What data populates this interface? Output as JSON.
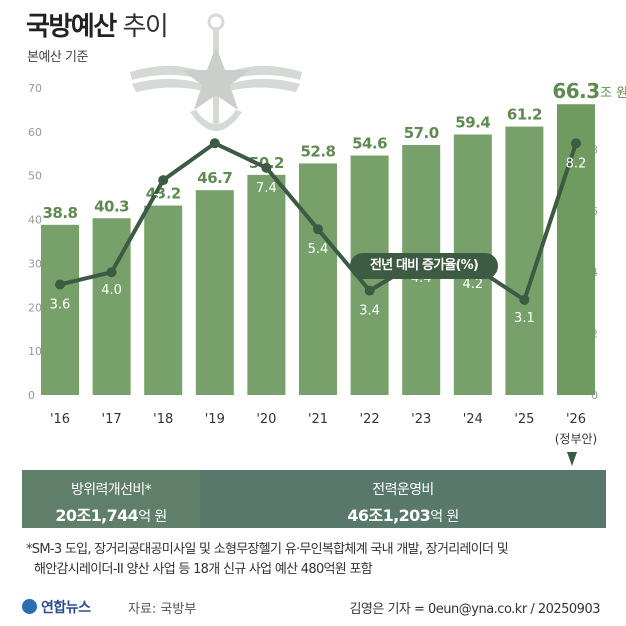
{
  "title_bold": "국방예산",
  "title_light": "추이",
  "subtitle": "본예산 기준",
  "chart_data": {
    "type": "bar",
    "categories": [
      "'16",
      "'17",
      "'18",
      "'19",
      "'20",
      "'21",
      "'22",
      "'23",
      "'24",
      "'25",
      "'26"
    ],
    "category_note": "(정부안)",
    "series": [
      {
        "values": [
          38.8,
          40.3,
          43.2,
          46.7,
          50.2,
          52.8,
          54.6,
          57.0,
          59.4,
          61.2,
          66.3
        ],
        "unit": "조 원",
        "axis": "left"
      },
      {
        "name": "전년 대비 증가율(%)",
        "type": "line",
        "axis": "right",
        "values": [
          3.6,
          4.0,
          7.0,
          8.2,
          7.4,
          5.4,
          3.4,
          4.4,
          4.2,
          3.1,
          8.2
        ]
      }
    ],
    "bar_labels": [
      "38.8",
      "40.3",
      "43.2",
      "46.7",
      "50.2",
      "52.8",
      "54.6",
      "57.0",
      "59.4",
      "61.2",
      "66.3"
    ],
    "line_labels": [
      "3.6",
      "4.0",
      "7.0",
      "8.2",
      "7.4",
      "5.4",
      "3.4",
      "4.4",
      "4.2",
      "3.1",
      "8.2"
    ],
    "y_left": {
      "range": [
        0,
        70
      ],
      "ticks": [
        "0",
        "10",
        "20",
        "30",
        "40",
        "50",
        "60",
        "70"
      ]
    },
    "y_right": {
      "range": [
        0,
        10
      ],
      "ticks": [
        "0",
        "2",
        "4",
        "6",
        "8"
      ]
    },
    "grid": false,
    "colors": {
      "bar": "#78a06a",
      "bar_last": "#6f9a60",
      "line": "#3d5a43",
      "bar_label": "#5f8a52",
      "line_label": "#ffffff"
    }
  },
  "breakdown": {
    "a_label": "방위력개선비*",
    "a_value": "20조1,744",
    "a_unit": "억 원",
    "b_label": "전력운영비",
    "b_value": "46조1,203",
    "b_unit": "억 원"
  },
  "footnote_1": "*SM-3 도입, 장거리공대공미사일 및 소형무장헬기 유·무인복합체계 국내 개발, 장거리레이더 및",
  "footnote_2": "해안감시레이더-II 양산 사업 등 18개 신규 사업 예산 480억원 포함",
  "logo_text": "연합뉴스",
  "source": "자료: 국방부",
  "credit": "김영은 기자 = 0eun@yna.co.kr / 20250903"
}
